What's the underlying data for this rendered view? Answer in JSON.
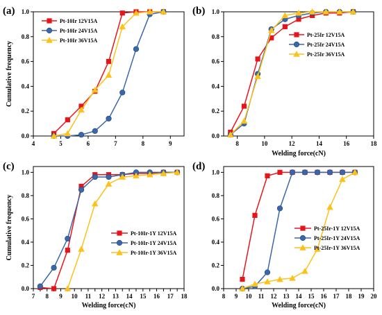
{
  "colors": {
    "red": "#e8141c",
    "blue": "#3a67a8",
    "yellow": "#fcc21a"
  },
  "chart_data": [
    {
      "type": "line",
      "panel_label": "(a)",
      "xlabel": "",
      "ylabel": "Cumulative frequency",
      "xlim": [
        4,
        9.5
      ],
      "ylim": [
        0,
        1.0
      ],
      "xticks": [
        4,
        5,
        6,
        7,
        8,
        9
      ],
      "yticks": [
        0.0,
        0.2,
        0.4,
        0.6,
        0.8,
        1.0
      ],
      "ytick_labels": [
        "0.0",
        "0.2",
        "0.4",
        "0.6",
        "0.8",
        "1.0"
      ],
      "legend_position": "top-left",
      "series": [
        {
          "name": "Pt-10Ir 12V15A",
          "color": "red",
          "marker": "square",
          "x": [
            4.75,
            5.25,
            5.75,
            6.25,
            6.75,
            7.25,
            7.75,
            8.25,
            8.75
          ],
          "y": [
            0.02,
            0.13,
            0.24,
            0.36,
            0.6,
            0.99,
            1.0,
            1.0,
            1.0
          ]
        },
        {
          "name": "Pt-10Ir 24V15A",
          "color": "blue",
          "marker": "circle",
          "x": [
            4.75,
            5.25,
            5.75,
            6.25,
            6.75,
            7.25,
            7.75,
            8.25,
            8.75
          ],
          "y": [
            0.0,
            0.0,
            0.01,
            0.04,
            0.14,
            0.35,
            0.7,
            0.98,
            1.0
          ]
        },
        {
          "name": "Pt-10Ir 36V15A",
          "color": "yellow",
          "marker": "triangle",
          "x": [
            4.75,
            5.25,
            5.75,
            6.25,
            6.75,
            7.25,
            7.75,
            8.25,
            8.75
          ],
          "y": [
            0.0,
            0.02,
            0.21,
            0.37,
            0.49,
            0.88,
            0.99,
            1.0,
            1.0
          ]
        }
      ]
    },
    {
      "type": "line",
      "panel_label": "(b)",
      "xlabel": "Welding force(cN)",
      "ylabel": "",
      "xlim": [
        7,
        18
      ],
      "ylim": [
        0,
        1.0
      ],
      "xticks": [
        8,
        10,
        12,
        14,
        16,
        18
      ],
      "yticks": [
        0.0,
        0.2,
        0.4,
        0.6,
        0.8,
        1.0
      ],
      "ytick_labels": [
        "0.0",
        "0.2",
        "0.4",
        "0.6",
        "0.8",
        "1.0"
      ],
      "legend_position": "right",
      "series": [
        {
          "name": "Pt-25Ir 12V15A",
          "color": "red",
          "marker": "square",
          "x": [
            7.5,
            8.5,
            9.5,
            10.5,
            11.5,
            12.5,
            13.5,
            14.5,
            15.5,
            16.5
          ],
          "y": [
            0.03,
            0.24,
            0.62,
            0.79,
            0.88,
            0.94,
            0.97,
            0.99,
            0.99,
            1.0
          ]
        },
        {
          "name": "Pt-25Ir 24V15A",
          "color": "blue",
          "marker": "circle",
          "x": [
            7.5,
            8.5,
            9.5,
            10.5,
            11.5,
            12.5,
            13.5,
            14.5,
            15.5,
            16.5
          ],
          "y": [
            0.01,
            0.1,
            0.5,
            0.86,
            0.94,
            0.97,
            0.99,
            1.0,
            1.0,
            1.0
          ]
        },
        {
          "name": "Pt-25Ir 36V15A",
          "color": "yellow",
          "marker": "triangle",
          "x": [
            7.5,
            8.5,
            9.5,
            10.5,
            11.5,
            12.5,
            13.5,
            14.5,
            15.5,
            16.5
          ],
          "y": [
            0.01,
            0.12,
            0.48,
            0.85,
            0.97,
            0.99,
            1.0,
            1.0,
            1.0,
            1.0
          ]
        }
      ]
    },
    {
      "type": "line",
      "panel_label": "(c)",
      "xlabel": "Welding force(cN)",
      "ylabel": "Cumulative frequency",
      "xlim": [
        7,
        18
      ],
      "ylim": [
        0,
        1.05
      ],
      "xticks": [
        7,
        7.5,
        8,
        8.5,
        9,
        9.5,
        10,
        10.5,
        11,
        11.5,
        12,
        12.5,
        13,
        13.5,
        14,
        14.5,
        15,
        15.5,
        16,
        16.5,
        17,
        17.5,
        18
      ],
      "yticks": [
        0.0,
        0.2,
        0.4,
        0.6,
        0.8,
        1.0
      ],
      "ytick_labels": [
        "0.0",
        "0.2",
        "0.4",
        "0.6",
        "0.8",
        "1.0"
      ],
      "legend_position": "bottom-right",
      "series": [
        {
          "name": "Pt-10Ir-1Y 12V15A",
          "color": "red",
          "marker": "square",
          "x": [
            7.5,
            8.5,
            9.5,
            10.5,
            11.5,
            12.5,
            13.5,
            14.5,
            15.5,
            16.5,
            17.5
          ],
          "y": [
            0.01,
            0.0,
            0.33,
            0.88,
            0.98,
            0.98,
            0.98,
            0.99,
            0.99,
            1.0,
            1.0
          ]
        },
        {
          "name": "Pt-10Ir-1Y 24V15A",
          "color": "blue",
          "marker": "circle",
          "x": [
            7.5,
            8.5,
            9.5,
            10.5,
            11.5,
            12.5,
            13.5,
            14.5,
            15.5,
            16.5,
            17.5
          ],
          "y": [
            0.02,
            0.18,
            0.43,
            0.85,
            0.96,
            0.96,
            0.98,
            1.0,
            1.0,
            1.0,
            1.0
          ]
        },
        {
          "name": "Pt-10Ir-1Y 36V15A",
          "color": "yellow",
          "marker": "triangle",
          "x": [
            9.5,
            10.5,
            11.5,
            12.5,
            13.5,
            14.5,
            15.5,
            16.5,
            17.5
          ],
          "y": [
            0.0,
            0.34,
            0.73,
            0.9,
            0.96,
            0.97,
            0.98,
            0.99,
            1.0
          ]
        }
      ]
    },
    {
      "type": "line",
      "panel_label": "(d)",
      "xlabel": "Welding force(cN)",
      "ylabel": "",
      "xlim": [
        8,
        20
      ],
      "ylim": [
        0,
        1.05
      ],
      "xticks": [
        8,
        9,
        10,
        11,
        12,
        13,
        14,
        15,
        16,
        17,
        18,
        19,
        20
      ],
      "yticks": [
        0.0,
        0.2,
        0.4,
        0.6,
        0.8,
        1.0
      ],
      "ytick_labels": [
        "0.0",
        "0.2",
        "0.4",
        "0.6",
        "0.8",
        "1.0"
      ],
      "legend_position": "bottom-left",
      "series": [
        {
          "name": "Pt-25Ir-1Y 12V15A",
          "color": "red",
          "marker": "square",
          "x": [
            9.5,
            10.5,
            11.5,
            12.5,
            13.5,
            14.5,
            15.5,
            16.5,
            17.5,
            18.5
          ],
          "y": [
            0.08,
            0.63,
            0.97,
            1.0,
            1.0,
            1.0,
            1.0,
            1.0,
            1.0,
            1.0
          ]
        },
        {
          "name": "Pt-25Ir-1Y 24V15A",
          "color": "blue",
          "marker": "circle",
          "x": [
            9.5,
            10.5,
            11.5,
            12.5,
            13.5,
            14.5,
            15.5,
            16.5,
            17.5,
            18.5
          ],
          "y": [
            0.0,
            0.02,
            0.14,
            0.69,
            1.0,
            1.0,
            1.0,
            1.0,
            1.0,
            1.0
          ]
        },
        {
          "name": "Pt-25Ir-1Y 36V15A",
          "color": "yellow",
          "marker": "triangle",
          "x": [
            9.5,
            10.5,
            11.5,
            12.5,
            13.5,
            14.5,
            15.5,
            16.5,
            17.5,
            18.5
          ],
          "y": [
            0.0,
            0.04,
            0.06,
            0.08,
            0.09,
            0.15,
            0.34,
            0.7,
            0.94,
            1.0
          ]
        }
      ]
    }
  ]
}
